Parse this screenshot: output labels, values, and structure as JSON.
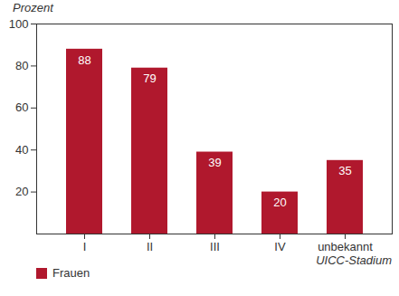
{
  "chart_data": {
    "type": "bar",
    "y_label": "Prozent",
    "x_label": "UICC-Stadium",
    "categories": [
      "I",
      "II",
      "III",
      "IV",
      "unbekannt"
    ],
    "series": [
      {
        "name": "Frauen",
        "color": "#b0182d",
        "values": [
          88,
          79,
          39,
          20,
          35
        ]
      }
    ],
    "ylim": [
      0,
      100
    ],
    "yticks": [
      20,
      40,
      60,
      80,
      100
    ],
    "grid": false,
    "legend": "bottom-left",
    "data_labels": true
  }
}
